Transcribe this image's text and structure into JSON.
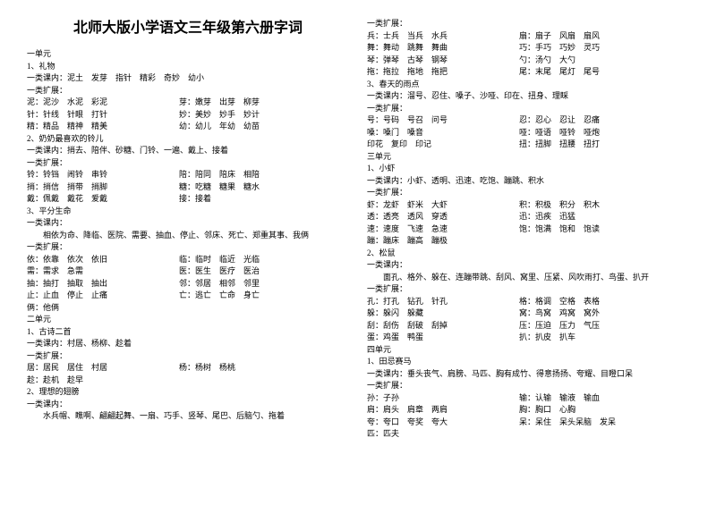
{
  "title": "北师大版小学语文三年级第六册字词",
  "left": {
    "unit1": "一单元",
    "s1_title": "1、礼物",
    "s1_kenei": "一类课内：泥土　发芽　指针　精彩　奇妙　幼小",
    "s1_kz": "一类扩展：",
    "s1_l1a": "泥：泥沙　水泥　彩泥",
    "s1_l1b": "芽：嫩芽　出芽　柳芽",
    "s1_l2a": "针：针线　针眼　打针",
    "s1_l2b": "妙：美妙　妙手　妙计",
    "s1_l3a": "精：精品　精神　精美",
    "s1_l3b": "幼：幼儿　年幼　幼苗",
    "s2_title": "2、奶奶最喜欢的铃儿",
    "s2_kenei": "一类课内：捎去、陪伴、砂糖、门铃、一遍、戴上、接着",
    "s2_kz": "一类扩展：",
    "s2_l1a": "铃：铃铛　闹铃　串铃",
    "s2_l1b": "陪：陪同　陪床　相陪",
    "s2_l2a": "捎：捎信　捎带　捎脚",
    "s2_l2b": "糖：吃糖　糖果　糖水",
    "s2_l3a": "戴：佩戴　戴花　爱戴",
    "s2_l3b": "接：接着",
    "s3_title": "3、平分生命",
    "s3_kenei": "一类课内：",
    "s3_kenei2": "相依为命、降临、医院、需要、抽血、停止、邻床、死亡、郑重其事、我俩",
    "s3_kz": "一类扩展：",
    "s3_l1a": "依：依靠　依次　依旧",
    "s3_l1b": "临：临时　临近　光临",
    "s3_l2a": "需：需求　急需",
    "s3_l2b": "医：医生　医疗　医治",
    "s3_l3a": "抽：抽打　抽取　抽出",
    "s3_l3b": "邻：邻居　相邻　邻里",
    "s3_l4a": "止：止血　停止　止痛",
    "s3_l4b": "亡：逃亡　亡命　身亡",
    "s3_l5": "俩：他俩",
    "unit2": "二单元",
    "u2s1_title": "1、古诗二首",
    "u2s1_kenei": "一类课内：村居、杨柳、趁着",
    "u2s1_kz": "一类扩展：",
    "u2s1_l1a": "居：居民　居住　村居",
    "u2s1_l1b": "杨：杨树　杨桃",
    "u2s1_l2": "趁：趁机　趁早",
    "u2s2_title": "2、理想的翅膀",
    "u2s2_kenei": "一类课内：",
    "u2s2_kenei2": "水兵帽、瞧啊、翩翩起舞、一扇、巧手、竖琴、尾巴、后脑勺、拖着"
  },
  "right": {
    "r1_kz": "一类扩展：",
    "r1_l1a": "兵：士兵　当兵　水兵",
    "r1_l1b": "扇：扇子　风扇　扇风",
    "r1_l2a": "舞：舞动　跳舞　舞曲",
    "r1_l2b": "巧：手巧　巧妙　灵巧",
    "r1_l3a": "琴：弹琴　古琴　钢琴",
    "r1_l3b": "勺：汤勺　大勺",
    "r1_l4a": "拖：拖拉　拖地　拖把",
    "r1_l4b": "尾：末尾　尾灯　尾号",
    "r2_title": "3、春天的雨点",
    "r2_kenei": "一类课内：溜号、忍住、嗓子、沙哑、印在、扭身、理睬",
    "r2_kz": "一类扩展：",
    "r2_l1a": "号：号码　号召　问号",
    "r2_l1b": "忍：忍心　忍让　忍痛",
    "r2_l2a": "嗓：嗓门　嗓音",
    "r2_l2b": "哑：哑语　哑铃　哑炮",
    "r2_l3a": "印花　复印　印记",
    "r2_l3b": "扭：扭脚　扭腰　扭打",
    "unit3": "三单元",
    "u3s1_title": "1、小虾",
    "u3s1_kenei": "一类课内：小虾、透明、迅速、吃饱、蹦跳、积水",
    "u3s1_kz": "一类扩展：",
    "u3s1_l1a": "虾：龙虾　虾米　大虾",
    "u3s1_l1b": "积：积极　积分　积木",
    "u3s1_l2a": "透：透亮　透风　穿透",
    "u3s1_l2b": "迅：迅疾　迅猛",
    "u3s1_l3a": "速：速度　飞速　急速",
    "u3s1_l3b": "饱：饱满　饱和　饱读",
    "u3s1_l4": "蹦：蹦床　蹦高　蹦极",
    "u3s2_title": "2、松鼠",
    "u3s2_kenei": "一类课内：",
    "u3s2_kenei2": "面孔、格外、躲在、连蹦带跳、刮风、窝里、压紧、风吹雨打、鸟蛋、扒开",
    "u3s2_kz": "一类扩展：",
    "u3s2_l1a": "孔：打孔　钻孔　针孔",
    "u3s2_l1b": "格：格调　空格　表格",
    "u3s2_l2a": "躲：躲闪　躲藏",
    "u3s2_l2b": "窝：鸟窝　鸡窝　窝外",
    "u3s2_l3a": "刮：刮伤　刮破　刮掉",
    "u3s2_l3b": "压：压迫　压力　气压",
    "u3s2_l4a": "蛋：鸡蛋　鸭蛋",
    "u3s2_l4b": "扒：扒皮　扒车",
    "unit4": "四单元",
    "u4s1_title": "1、田忌赛马",
    "u4s1_kenei": "一类课内：垂头丧气、肩膀、马匹、胸有成竹、得意扬扬、夸耀、目瞪口呆",
    "u4s1_kz": "一类扩展：",
    "u4s1_l1a": "孙：子孙",
    "u4s1_l1b": "输：认输　输液　输血",
    "u4s1_l2a": "肩：肩头　肩章　两肩",
    "u4s1_l2b": "胸：胸口　心胸",
    "u4s1_l3a": "夸：夸口　夸奖　夸大",
    "u4s1_l3b": "呆：呆住　呆头呆脑　发呆",
    "u4s1_l4": "匹：匹夫"
  }
}
